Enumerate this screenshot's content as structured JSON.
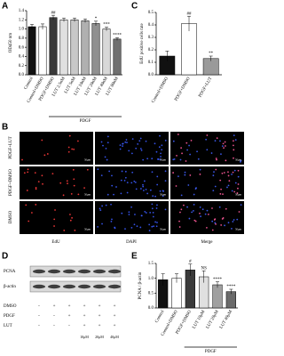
{
  "chart_data": [
    {
      "type": "bar",
      "panel_label": "A",
      "ylabel": "OD450 nm",
      "categories": [
        "Control",
        "Control+DMSO",
        "PDGF+DMSO",
        "LUT 2.5nM",
        "LUT 5nM",
        "LUT 10nM",
        "LUT 20nM",
        "LUT 40nM",
        "LUT 80nM"
      ],
      "values": [
        1.05,
        1.05,
        1.25,
        1.2,
        1.2,
        1.18,
        1.12,
        1.0,
        0.78
      ],
      "errors": [
        0.05,
        0.06,
        0.05,
        0.04,
        0.04,
        0.04,
        0.05,
        0.04,
        0.03
      ],
      "colors": [
        "#111111",
        "#ffffff",
        "#3a3a3a",
        "#e0e0e0",
        "#c8c8c8",
        "#b0b0b0",
        "#909090",
        "#d8d8d8",
        "#707070"
      ],
      "annotations": [
        null,
        null,
        "##",
        null,
        null,
        null,
        "*",
        "***",
        "****"
      ],
      "group_label": "PDGF",
      "ylim": [
        0,
        1.4
      ],
      "yticks": [
        {
          "value": 0,
          "label": "0.0"
        },
        0.2,
        0.4,
        0.6,
        0.8,
        {
          "value": 1,
          "label": "1.0"
        },
        1.2,
        1.4
      ]
    },
    {
      "type": "bar",
      "panel_label": "C",
      "ylabel": "EdU positive cells rate",
      "categories": [
        "Control+DMSO",
        "PDGF+DMSO",
        "PDGF+LUT"
      ],
      "values": [
        0.15,
        0.41,
        0.13
      ],
      "errors": [
        0.04,
        0.06,
        0.02
      ],
      "colors": [
        "#111111",
        "#ffffff",
        "#9a9a9a"
      ],
      "annotations": [
        null,
        "##",
        "**"
      ],
      "ylim": [
        0,
        0.5
      ],
      "yticks": [
        {
          "value": 0,
          "label": "0.0"
        },
        0.1,
        0.2,
        0.3,
        0.4,
        0.5
      ]
    },
    {
      "type": "bar",
      "panel_label": "E",
      "ylabel": "PCNA / β-actin",
      "categories": [
        "Control",
        "Control+DMSO",
        "PDGF+DMSO",
        "LUT 10μM",
        "LUT 20μM",
        "LUT 40μM"
      ],
      "values": [
        0.95,
        1.0,
        1.28,
        1.05,
        0.78,
        0.55
      ],
      "errors": [
        0.2,
        0.15,
        0.2,
        0.2,
        0.1,
        0.08
      ],
      "colors": [
        "#111111",
        "#ffffff",
        "#3a3a3a",
        "#e0e0e0",
        "#a0a0a0",
        "#6a6a6a"
      ],
      "annotations": [
        null,
        null,
        "#",
        "NS",
        "****",
        "****"
      ],
      "group_label": "PDGF",
      "ylim": [
        0,
        1.5
      ],
      "yticks": [
        {
          "value": 0,
          "label": "0.0"
        },
        {
          "value": 0.5,
          "label": "0.5"
        },
        {
          "value": 1,
          "label": "1.0"
        },
        {
          "value": 1.5,
          "label": "1.5"
        }
      ]
    }
  ],
  "microscopy": {
    "panel_label": "B",
    "rows": [
      "PDGF+LUT",
      "PDGF+DMSO",
      "DMSO"
    ],
    "columns": [
      "EdU",
      "DAPI",
      "Merge"
    ],
    "scale_bar": "50μm"
  },
  "western_blot": {
    "panel_label": "D",
    "bands": [
      "PCNA",
      "β-actin"
    ],
    "treatments": [
      {
        "name": "DMSO",
        "lanes": [
          "-",
          "+",
          "+",
          "+",
          "+",
          "+"
        ]
      },
      {
        "name": "PDGF",
        "lanes": [
          "-",
          "-",
          "+",
          "+",
          "+",
          "+"
        ]
      },
      {
        "name": "LUT",
        "lanes": [
          "-",
          "-",
          "-",
          "+",
          "+",
          "+"
        ]
      }
    ],
    "doses": [
      "10μM",
      "20μM",
      "40μM"
    ]
  }
}
